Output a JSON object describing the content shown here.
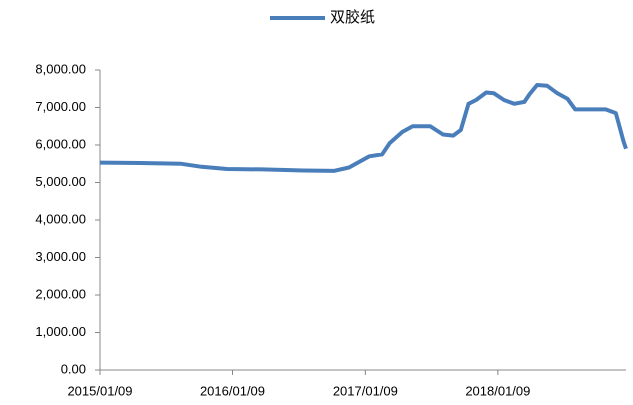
{
  "chart_data": {
    "type": "line",
    "x": [
      "2015/01/09",
      "2015/04/30",
      "2015/08/21",
      "2015/10/16",
      "2015/12/25",
      "2016/04/01",
      "2016/07/22",
      "2016/10/14",
      "2016/11/25",
      "2016/12/23",
      "2017/01/20",
      "2017/02/24",
      "2017/03/17",
      "2017/04/21",
      "2017/05/19",
      "2017/07/07",
      "2017/08/11",
      "2017/09/08",
      "2017/09/29",
      "2017/10/20",
      "2017/11/10",
      "2017/12/08",
      "2017/12/29",
      "2018/01/26",
      "2018/02/23",
      "2018/03/23",
      "2018/04/06",
      "2018/04/27",
      "2018/05/25",
      "2018/06/22",
      "2018/07/20",
      "2018/08/10",
      "2018/09/28",
      "2018/11/02",
      "2018/11/30",
      "2018/12/07",
      "2018/12/21",
      "2018/12/28"
    ],
    "series": [
      {
        "name": "双胶纸",
        "color": "#4a7ebb",
        "values": [
          5530,
          5520,
          5500,
          5420,
          5360,
          5350,
          5320,
          5310,
          5400,
          5550,
          5700,
          5750,
          6050,
          6350,
          6500,
          6500,
          6280,
          6250,
          6400,
          7100,
          7200,
          7400,
          7380,
          7200,
          7100,
          7150,
          7350,
          7600,
          7580,
          7380,
          7230,
          6950,
          6950,
          6950,
          6850,
          6600,
          6100,
          5900
        ]
      }
    ],
    "xlim": [
      "2015/01/09",
      "2018/12/28"
    ],
    "xticks": [
      "2015/01/09",
      "2016/01/09",
      "2017/01/09",
      "2018/01/09"
    ],
    "ylim": [
      0,
      8000
    ],
    "yticks": [
      {
        "value": 0,
        "label": "0.00"
      },
      {
        "value": 1000,
        "label": "1,000.00"
      },
      {
        "value": 2000,
        "label": "2,000.00"
      },
      {
        "value": 3000,
        "label": "3,000.00"
      },
      {
        "value": 4000,
        "label": "4,000.00"
      },
      {
        "value": 5000,
        "label": "5,000.00"
      },
      {
        "value": 6000,
        "label": "6,000.00"
      },
      {
        "value": 7000,
        "label": "7,000.00"
      },
      {
        "value": 8000,
        "label": "8,000.00"
      }
    ],
    "legend": "top",
    "grid": false
  }
}
